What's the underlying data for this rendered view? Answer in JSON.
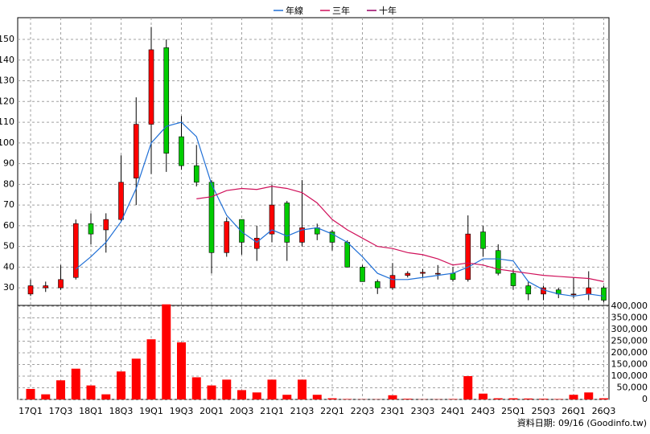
{
  "chart_data": {
    "type": "candlestick",
    "legend_position": "top",
    "grid": true,
    "up_color": "#ff0000",
    "down_color": "#00cc00",
    "categories": [
      "17Q1",
      null,
      "17Q3",
      null,
      "18Q1",
      null,
      "18Q3",
      null,
      "19Q1",
      null,
      "19Q3",
      null,
      "20Q1",
      null,
      "20Q3",
      null,
      "21Q1",
      null,
      "21Q3",
      null,
      "22Q1",
      null,
      "22Q3",
      null,
      "23Q1",
      null,
      "23Q3",
      null,
      "24Q1",
      null,
      "24Q3",
      null,
      "25Q1",
      null,
      "25Q3",
      null,
      "26Q1",
      null,
      "26Q3"
    ],
    "open": [
      27,
      30,
      30,
      35,
      61,
      58,
      63,
      83,
      109,
      146,
      103,
      89,
      81,
      47,
      63,
      49,
      56,
      71,
      52,
      59,
      57,
      52,
      40,
      33,
      30,
      36,
      37,
      37,
      37,
      34,
      57,
      48,
      37,
      31,
      27,
      29,
      27,
      27,
      30
    ],
    "high": [
      34,
      33,
      41,
      63,
      66,
      66,
      94,
      122,
      156,
      150,
      113,
      99,
      82,
      64,
      63,
      60,
      80,
      72,
      82,
      61,
      58,
      53,
      41,
      34,
      42,
      38,
      39,
      41,
      40,
      65,
      60,
      51,
      39,
      33,
      31,
      30,
      35,
      38,
      31
    ],
    "low": [
      26,
      28,
      29,
      34,
      51,
      47,
      62,
      70,
      85,
      86,
      87,
      79,
      37,
      45,
      46,
      43,
      52,
      43,
      50,
      53,
      48,
      40,
      33,
      27,
      29,
      35,
      35,
      34,
      33,
      33,
      45,
      36,
      29,
      24,
      24,
      25,
      25,
      24,
      23
    ],
    "close": [
      31,
      31,
      34,
      61,
      56,
      63,
      81,
      109,
      145,
      95,
      89,
      81,
      47,
      62,
      52,
      54,
      70,
      52,
      59,
      56,
      52,
      40,
      33,
      30,
      36,
      37,
      37.5,
      37,
      34,
      56,
      49,
      37,
      31,
      27,
      30,
      27,
      27,
      30,
      24
    ],
    "ylim": [
      21.5,
      160.5
    ],
    "yticks": [
      30,
      40,
      50,
      60,
      70,
      80,
      90,
      100,
      110,
      120,
      130,
      140,
      150
    ],
    "series": [
      {
        "name": "年線",
        "color": "#1f6fd6",
        "values": [
          null,
          null,
          null,
          39,
          45,
          52,
          62,
          78,
          100,
          108,
          110,
          103,
          80,
          65,
          57,
          52,
          58,
          55,
          58,
          59,
          56,
          52,
          45,
          37,
          34,
          34,
          35,
          36,
          37,
          40,
          44,
          44,
          43,
          33,
          29,
          27,
          26,
          27,
          26
        ]
      },
      {
        "name": "三年",
        "color": "#d0105a",
        "values": [
          null,
          null,
          null,
          null,
          null,
          null,
          null,
          null,
          null,
          null,
          null,
          73,
          74,
          77,
          78,
          77.5,
          79,
          78,
          76,
          71,
          63,
          58,
          54,
          50,
          49,
          47,
          46,
          44,
          41,
          42,
          41,
          39,
          38,
          37,
          36,
          35.5,
          35,
          34.5,
          33
        ]
      },
      {
        "name": "十年",
        "color": "#990066",
        "values": [
          null,
          null,
          null,
          null,
          null,
          null,
          null,
          null,
          null,
          null,
          null,
          null,
          null,
          null,
          null,
          null,
          null,
          null,
          null,
          null,
          null,
          null,
          null,
          null,
          null,
          null,
          null,
          null,
          null,
          null,
          null,
          null,
          null,
          null,
          null,
          null,
          null,
          null,
          null
        ]
      }
    ],
    "volume": {
      "color": "#ff0000",
      "values": [
        45000,
        22000,
        82000,
        132000,
        60000,
        22000,
        120000,
        175000,
        258000,
        408000,
        245000,
        95000,
        60000,
        85000,
        40000,
        30000,
        85000,
        20000,
        85000,
        20000,
        5000,
        2000,
        1000,
        1000,
        18000,
        3000,
        1000,
        1000,
        2000,
        100000,
        25000,
        5000,
        5000,
        4000,
        3000,
        2000,
        20000,
        30000,
        5000
      ],
      "ylim": [
        0,
        400000
      ],
      "yticks": [
        0,
        {
          "value": 50000,
          "label": "50,000"
        },
        {
          "value": 100000,
          "label": "100,000"
        },
        {
          "value": 150000,
          "label": "150,000"
        },
        {
          "value": 200000,
          "label": "200,000"
        },
        {
          "value": 250000,
          "label": "250,000"
        },
        {
          "value": 300000,
          "label": "300,000"
        },
        {
          "value": 350000,
          "label": "350,000"
        },
        {
          "value": 400000,
          "label": "400,000"
        }
      ]
    },
    "note": "資料日期: 09/16 (Goodinfo.tw)"
  }
}
